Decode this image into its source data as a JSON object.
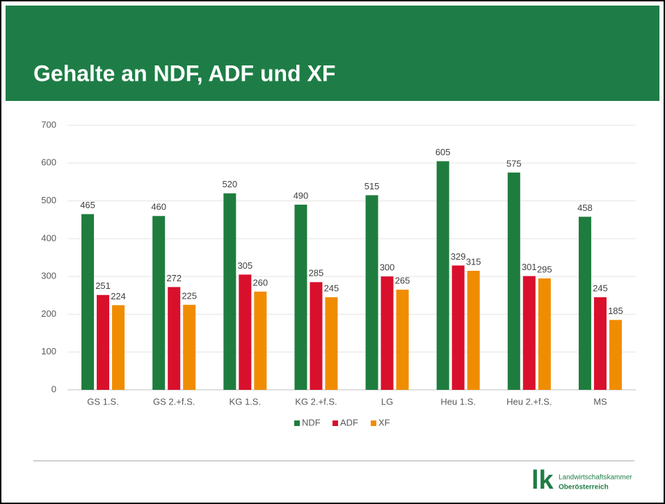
{
  "chart_data": {
    "type": "bar",
    "title": "Gehalte an NDF, ADF und XF",
    "categories": [
      "GS 1.S.",
      "GS 2.+f.S.",
      "KG 1.S.",
      "KG 2.+f.S.",
      "LG",
      "Heu 1.S.",
      "Heu 2.+f.S.",
      "MS"
    ],
    "series": [
      {
        "name": "NDF",
        "color": "#1e7d3e",
        "values": [
          465,
          460,
          520,
          490,
          515,
          605,
          575,
          458
        ]
      },
      {
        "name": "ADF",
        "color": "#d9102c",
        "values": [
          251,
          272,
          305,
          285,
          300,
          329,
          301,
          245
        ]
      },
      {
        "name": "XF",
        "color": "#f08c00",
        "values": [
          224,
          225,
          260,
          245,
          265,
          315,
          295,
          185
        ]
      }
    ],
    "ylim": [
      0,
      700
    ],
    "yticks": [
      0,
      100,
      200,
      300,
      400,
      500,
      600,
      700
    ],
    "grid": true,
    "legend": "bottom"
  },
  "logo": {
    "mark": "lk",
    "line1": "Landwirtschaftskammer",
    "line2": "Oberösterreich"
  }
}
